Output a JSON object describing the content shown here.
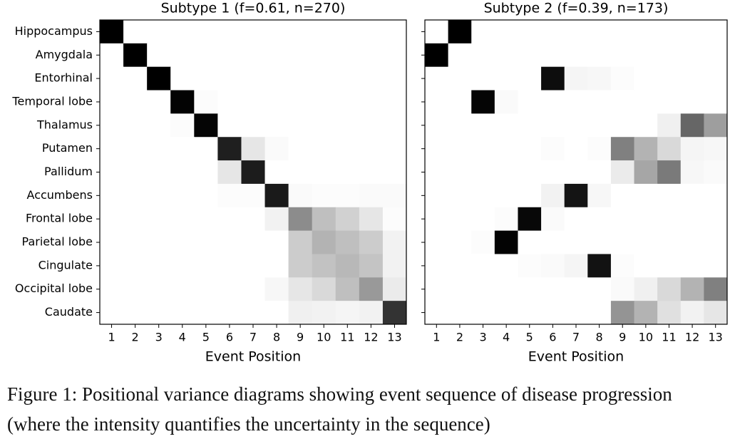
{
  "chart_data": [
    {
      "type": "heatmap",
      "title": "Subtype 1 (f=0.61, n=270)",
      "xlabel": "Event Position",
      "categories": [
        1,
        2,
        3,
        4,
        5,
        6,
        7,
        8,
        9,
        10,
        11,
        12,
        13
      ],
      "rows": [
        "Hippocampus",
        "Amygdala",
        "Entorhinal",
        "Temporal lobe",
        "Thalamus",
        "Putamen",
        "Pallidum",
        "Accumbens",
        "Frontal lobe",
        "Parietal lobe",
        "Cingulate",
        "Occipital lobe",
        "Caudate"
      ],
      "color": "#000000",
      "vlim": [
        0,
        1
      ],
      "values": [
        [
          1,
          0,
          0,
          0,
          0,
          0,
          0,
          0,
          0,
          0,
          0,
          0,
          0
        ],
        [
          0,
          1,
          0,
          0,
          0,
          0,
          0,
          0,
          0,
          0,
          0,
          0,
          0
        ],
        [
          0,
          0,
          1,
          0,
          0,
          0,
          0,
          0,
          0,
          0,
          0,
          0,
          0
        ],
        [
          0,
          0,
          0,
          0.99,
          0.01,
          0,
          0,
          0,
          0,
          0,
          0,
          0,
          0
        ],
        [
          0,
          0,
          0,
          0.01,
          0.98,
          0,
          0,
          0,
          0,
          0,
          0,
          0,
          0
        ],
        [
          0,
          0,
          0,
          0,
          0,
          0.88,
          0.1,
          0.02,
          0,
          0,
          0,
          0,
          0
        ],
        [
          0,
          0,
          0,
          0,
          0,
          0.1,
          0.89,
          0,
          0,
          0,
          0,
          0,
          0
        ],
        [
          0,
          0,
          0,
          0,
          0,
          0.01,
          0.01,
          0.9,
          0.02,
          0.01,
          0.01,
          0.02,
          0.02
        ],
        [
          0,
          0,
          0,
          0,
          0,
          0,
          0,
          0.05,
          0.45,
          0.25,
          0.18,
          0.1,
          0.01
        ],
        [
          0,
          0,
          0,
          0,
          0,
          0,
          0,
          0,
          0.2,
          0.3,
          0.25,
          0.2,
          0.05
        ],
        [
          0,
          0,
          0,
          0,
          0,
          0,
          0,
          0,
          0.2,
          0.24,
          0.28,
          0.23,
          0.05
        ],
        [
          0,
          0,
          0,
          0,
          0,
          0,
          0,
          0.03,
          0.1,
          0.15,
          0.25,
          0.4,
          0.08
        ],
        [
          0,
          0,
          0,
          0,
          0,
          0,
          0,
          0,
          0.06,
          0.05,
          0.04,
          0.05,
          0.8
        ]
      ]
    },
    {
      "type": "heatmap",
      "title": "Subtype 2 (f=0.39, n=173)",
      "xlabel": "Event Position",
      "categories": [
        1,
        2,
        3,
        4,
        5,
        6,
        7,
        8,
        9,
        10,
        11,
        12,
        13
      ],
      "color": "#000000",
      "vlim": [
        0,
        1
      ],
      "values": [
        [
          0,
          1,
          0,
          0,
          0,
          0,
          0,
          0,
          0,
          0,
          0,
          0,
          0
        ],
        [
          1,
          0,
          0,
          0,
          0,
          0,
          0,
          0,
          0,
          0,
          0,
          0,
          0
        ],
        [
          0,
          0,
          0,
          0,
          0,
          0.95,
          0.04,
          0.03,
          0.01,
          0,
          0,
          0,
          0
        ],
        [
          0,
          0,
          0.98,
          0.02,
          0,
          0,
          0,
          0,
          0,
          0,
          0,
          0,
          0
        ],
        [
          0,
          0,
          0,
          0,
          0,
          0,
          0,
          0,
          0,
          0,
          0.06,
          0.6,
          0.38
        ],
        [
          0,
          0,
          0,
          0,
          0,
          0.01,
          0,
          0.01,
          0.5,
          0.3,
          0.15,
          0.04,
          0.03
        ],
        [
          0,
          0,
          0,
          0,
          0,
          0,
          0,
          0,
          0.08,
          0.35,
          0.52,
          0.03,
          0.02
        ],
        [
          0,
          0,
          0,
          0,
          0,
          0.05,
          0.92,
          0.03,
          0,
          0,
          0,
          0,
          0
        ],
        [
          0,
          0,
          0,
          0.01,
          0.97,
          0.02,
          0,
          0,
          0,
          0,
          0,
          0,
          0
        ],
        [
          0,
          0,
          0.01,
          0.99,
          0,
          0,
          0,
          0,
          0,
          0,
          0,
          0,
          0
        ],
        [
          0,
          0,
          0,
          0,
          0.01,
          0.02,
          0.04,
          0.93,
          0.01,
          0,
          0,
          0,
          0
        ],
        [
          0,
          0,
          0,
          0,
          0,
          0,
          0,
          0,
          0.02,
          0.06,
          0.15,
          0.3,
          0.5
        ],
        [
          0,
          0,
          0,
          0,
          0,
          0,
          0,
          0,
          0.42,
          0.3,
          0.12,
          0.05,
          0.1
        ]
      ]
    }
  ],
  "caption": "Figure 1: Positional variance diagrams showing event sequence of disease progression (where the intensity quantifies the uncertainty in the sequence)"
}
